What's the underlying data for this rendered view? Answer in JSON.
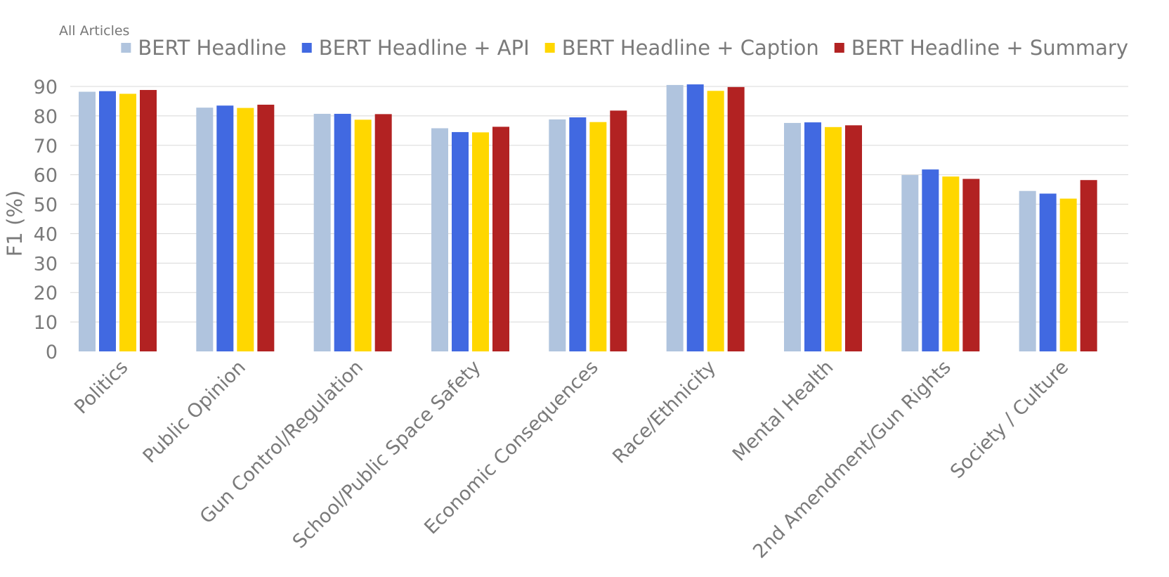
{
  "chart_data": {
    "type": "bar",
    "title": "All Articles",
    "xlabel": "",
    "ylabel": "F1 (%)",
    "ylim": [
      0,
      90
    ],
    "yticks": [
      0,
      10,
      20,
      30,
      40,
      50,
      60,
      70,
      80,
      90
    ],
    "grid": true,
    "legend_position": "top",
    "categories": [
      "Politics",
      "Public Opinion",
      "Gun Control/Regulation",
      "School/Public Space Safety",
      "Economic Consequences",
      "Race/Ethnicity",
      "Mental Health",
      "2nd Amendment/Gun Rights",
      "Society / Culture"
    ],
    "series": [
      {
        "name": "BERT Headline",
        "color": "#B0C4DE",
        "values": [
          88.2,
          82.8,
          80.7,
          75.8,
          78.8,
          90.5,
          77.6,
          59.9,
          54.5
        ]
      },
      {
        "name": "BERT Headline + API",
        "color": "#4169E1",
        "values": [
          88.4,
          83.5,
          80.7,
          74.5,
          79.5,
          90.7,
          77.8,
          61.8,
          53.6
        ]
      },
      {
        "name": "BERT Headline + Caption",
        "color": "#FFD700",
        "values": [
          87.5,
          82.7,
          78.7,
          74.4,
          77.9,
          88.5,
          76.2,
          59.4,
          51.9
        ]
      },
      {
        "name": "BERT Headline + Summary",
        "color": "#B22222",
        "values": [
          88.8,
          83.8,
          80.6,
          76.3,
          81.8,
          89.8,
          76.8,
          58.6,
          58.2
        ]
      }
    ]
  }
}
